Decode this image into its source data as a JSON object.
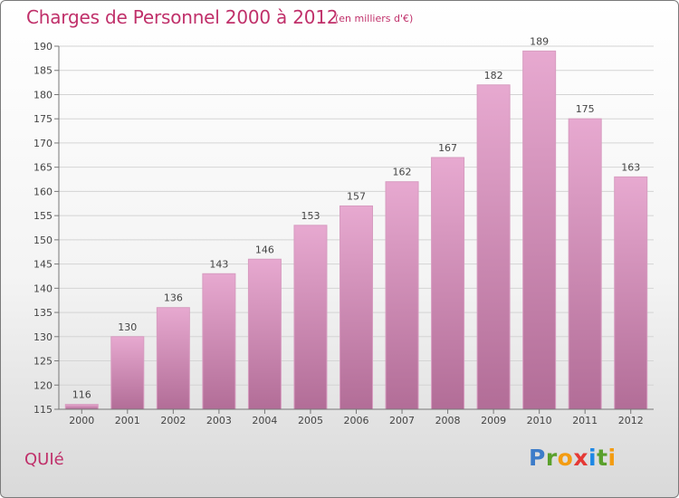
{
  "title": "Charges de Personnel 2000 à 2012",
  "subtitle": "(en milliers d'€)",
  "place": "QUIé",
  "logo": {
    "letters": [
      "P",
      "r",
      "o",
      "x",
      "i",
      "t",
      "i"
    ],
    "colors": [
      "#3d7cc9",
      "#5aa02c",
      "#f39c12",
      "#e53935",
      "#1e88e5",
      "#5aa02c",
      "#f39c12"
    ]
  },
  "colors": {
    "accent": "#c0306a",
    "bar_top": "#e7a9d0",
    "bar_bottom": "#b26d97"
  },
  "chart_data": {
    "type": "bar",
    "categories": [
      "2000",
      "2001",
      "2002",
      "2003",
      "2004",
      "2005",
      "2006",
      "2007",
      "2008",
      "2009",
      "2010",
      "2011",
      "2012"
    ],
    "values": [
      116,
      130,
      136,
      143,
      146,
      153,
      157,
      162,
      167,
      182,
      189,
      175,
      163
    ],
    "ylim": [
      115,
      190
    ],
    "yticks": [
      115,
      120,
      125,
      130,
      135,
      140,
      145,
      150,
      155,
      160,
      165,
      170,
      175,
      180,
      185,
      190
    ],
    "grid": true,
    "data_labels": true
  }
}
